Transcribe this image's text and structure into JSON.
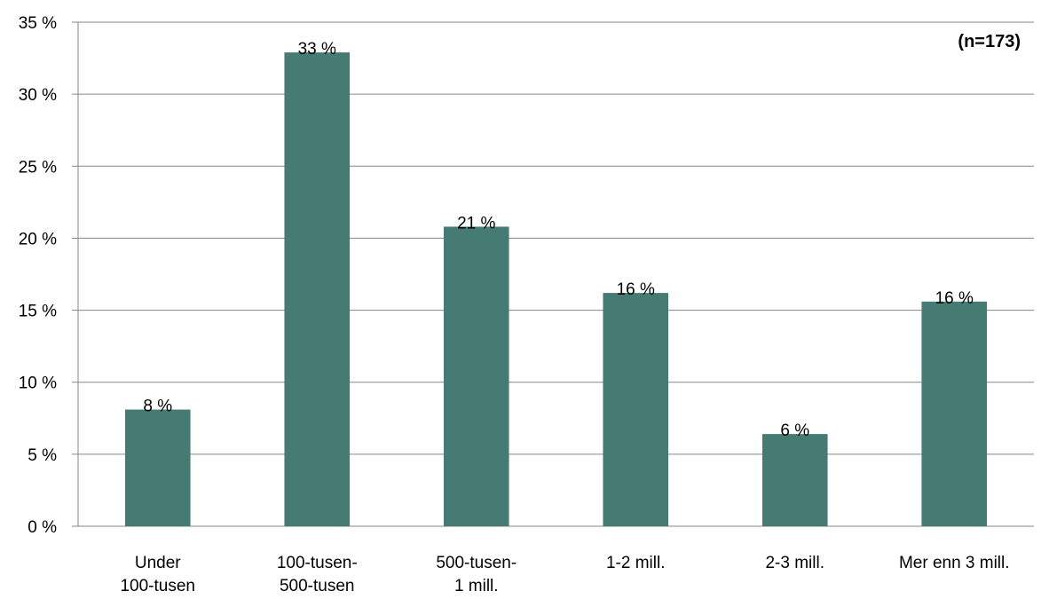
{
  "chart_data": {
    "type": "bar",
    "note": "(n=173)",
    "categories": [
      [
        "Under",
        "100-tusen"
      ],
      [
        "100-tusen-",
        "500-tusen"
      ],
      [
        "500-tusen-",
        "1 mill."
      ],
      [
        "1-2 mill."
      ],
      [
        "2-3 mill."
      ],
      [
        "Mer enn 3 mill."
      ]
    ],
    "values": [
      8.1,
      32.9,
      20.8,
      16.2,
      6.4,
      15.6
    ],
    "data_labels": [
      "8 %",
      "33 %",
      "21 %",
      "16 %",
      "6 %",
      "16 %"
    ],
    "y_ticks": [
      0,
      5,
      10,
      15,
      20,
      25,
      30,
      35
    ],
    "y_tick_labels": [
      "0 %",
      "5 %",
      "10 %",
      "15 %",
      "20 %",
      "25 %",
      "30 %",
      "35 %"
    ],
    "ylim": [
      0,
      35
    ],
    "grid": true,
    "legend": "none",
    "bar_color": "#457b72",
    "grid_color": "#868686"
  }
}
